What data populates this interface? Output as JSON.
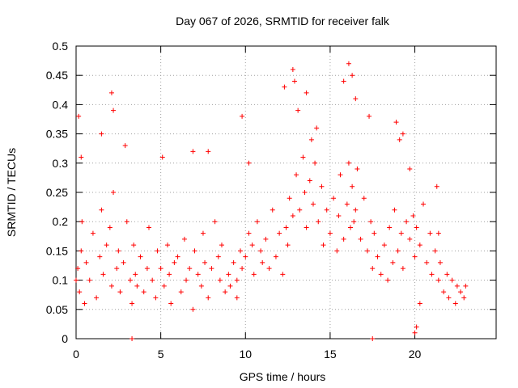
{
  "chart_data": {
    "type": "scatter",
    "title": "Day 067 of 2026, SRMTID for receiver falk",
    "xlabel": "GPS time / hours",
    "ylabel": "SRMTID / TECUs",
    "xlim": [
      0,
      24.8
    ],
    "ylim": [
      0,
      0.5
    ],
    "xticks": [
      0,
      5,
      10,
      15,
      20
    ],
    "yticks": [
      0,
      0.05,
      0.1,
      0.15,
      0.2,
      0.25,
      0.3,
      0.35,
      0.4,
      0.45,
      0.5
    ],
    "ytick_labels": [
      "0",
      "0.05",
      "0.1",
      "0.15",
      "0.2",
      "0.25",
      "0.3",
      "0.35",
      "0.4",
      "0.45",
      "0.5"
    ],
    "grid": true,
    "marker": "+",
    "color": "#ff0000",
    "series": [
      {
        "name": "SRMTID",
        "x": [
          0.0,
          0.1,
          0.2,
          0.3,
          0.35,
          0.5,
          0.6,
          0.8,
          1.0,
          1.2,
          1.4,
          1.5,
          1.6,
          1.8,
          2.0,
          2.1,
          2.2,
          2.4,
          2.5,
          2.6,
          2.8,
          3.0,
          3.2,
          3.3,
          3.4,
          3.5,
          3.6,
          3.8,
          4.0,
          4.2,
          4.3,
          4.5,
          4.7,
          4.8,
          5.0,
          5.2,
          5.4,
          5.5,
          5.6,
          5.8,
          6.0,
          6.2,
          6.4,
          6.5,
          6.7,
          6.9,
          7.0,
          7.2,
          7.4,
          7.5,
          7.6,
          7.8,
          8.0,
          8.2,
          8.4,
          8.5,
          8.6,
          8.8,
          9.0,
          9.1,
          9.3,
          9.5,
          9.7,
          9.8,
          10.0,
          10.2,
          10.4,
          10.5,
          10.7,
          10.9,
          11.0,
          11.2,
          11.4,
          11.6,
          11.8,
          12.0,
          12.2,
          12.4,
          12.5,
          12.6,
          12.8,
          13.0,
          13.2,
          13.4,
          13.5,
          13.6,
          13.8,
          14.0,
          14.1,
          14.3,
          14.5,
          14.6,
          14.8,
          15.0,
          15.2,
          15.4,
          15.5,
          15.6,
          15.8,
          16.0,
          16.1,
          16.2,
          16.3,
          16.4,
          16.5,
          16.6,
          16.8,
          17.0,
          17.2,
          17.4,
          17.5,
          17.6,
          17.8,
          18.0,
          18.2,
          18.4,
          18.5,
          18.7,
          18.8,
          19.0,
          19.2,
          19.3,
          19.5,
          19.7,
          19.9,
          20.0,
          20.1,
          20.3,
          20.5,
          20.7,
          20.9,
          21.0,
          21.2,
          21.4,
          21.5,
          21.7,
          21.9,
          22.0,
          22.2,
          22.4,
          22.5,
          22.7,
          22.9,
          23.0,
          0.15,
          0.3,
          1.5,
          2.1,
          2.2,
          2.9,
          3.3,
          5.1,
          6.9,
          7.8,
          9.5,
          9.8,
          10.2,
          12.3,
          12.8,
          12.9,
          13.1,
          13.6,
          13.9,
          14.2,
          15.8,
          16.1,
          16.3,
          16.5,
          17.3,
          17.5,
          18.9,
          19.1,
          19.3,
          19.7,
          20.0,
          20.1,
          20.3,
          21.3,
          21.4
        ],
        "y": [
          0.1,
          0.12,
          0.08,
          0.15,
          0.2,
          0.06,
          0.13,
          0.1,
          0.18,
          0.07,
          0.14,
          0.22,
          0.11,
          0.16,
          0.19,
          0.09,
          0.25,
          0.12,
          0.15,
          0.08,
          0.13,
          0.2,
          0.1,
          0.06,
          0.16,
          0.11,
          0.09,
          0.14,
          0.08,
          0.12,
          0.19,
          0.1,
          0.07,
          0.15,
          0.12,
          0.09,
          0.16,
          0.11,
          0.06,
          0.13,
          0.14,
          0.08,
          0.17,
          0.1,
          0.12,
          0.05,
          0.15,
          0.11,
          0.09,
          0.18,
          0.13,
          0.07,
          0.12,
          0.2,
          0.14,
          0.1,
          0.16,
          0.08,
          0.11,
          0.09,
          0.13,
          0.1,
          0.15,
          0.12,
          0.14,
          0.18,
          0.16,
          0.11,
          0.2,
          0.15,
          0.13,
          0.17,
          0.12,
          0.22,
          0.14,
          0.18,
          0.11,
          0.19,
          0.16,
          0.24,
          0.21,
          0.28,
          0.22,
          0.31,
          0.25,
          0.19,
          0.27,
          0.23,
          0.3,
          0.2,
          0.26,
          0.16,
          0.22,
          0.18,
          0.24,
          0.15,
          0.21,
          0.28,
          0.17,
          0.23,
          0.3,
          0.19,
          0.26,
          0.2,
          0.22,
          0.29,
          0.17,
          0.24,
          0.15,
          0.2,
          0.12,
          0.18,
          0.14,
          0.11,
          0.16,
          0.1,
          0.19,
          0.13,
          0.22,
          0.15,
          0.18,
          0.12,
          0.2,
          0.17,
          0.21,
          0.14,
          0.19,
          0.16,
          0.23,
          0.13,
          0.18,
          0.11,
          0.15,
          0.1,
          0.13,
          0.08,
          0.11,
          0.07,
          0.1,
          0.06,
          0.09,
          0.08,
          0.07,
          0.09,
          0.38,
          0.31,
          0.35,
          0.42,
          0.39,
          0.33,
          0.0,
          0.31,
          0.32,
          0.32,
          0.07,
          0.38,
          0.3,
          0.43,
          0.46,
          0.44,
          0.39,
          0.42,
          0.34,
          0.36,
          0.44,
          0.47,
          0.45,
          0.41,
          0.38,
          0.0,
          0.37,
          0.34,
          0.35,
          0.29,
          0.01,
          0.02,
          0.06,
          0.26,
          0.18
        ]
      }
    ]
  }
}
